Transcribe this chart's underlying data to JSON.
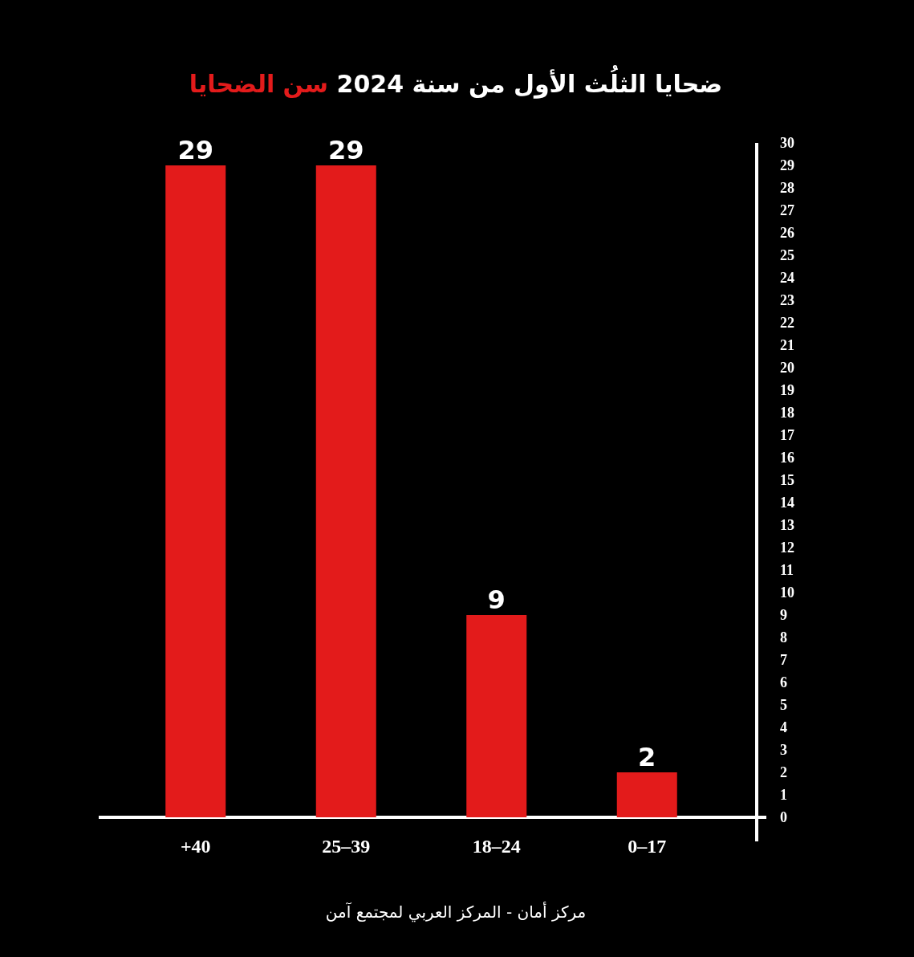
{
  "chart_data": {
    "type": "bar",
    "title": "ضحايا الثلُث الأول من سنة 2024",
    "subtitle": "سن الضحايا",
    "categories": [
      "+40",
      "25–39",
      "18–24",
      "0–17"
    ],
    "values": [
      29,
      29,
      9,
      2
    ],
    "color": "#e31b1b",
    "ylim": [
      0,
      30
    ],
    "yticks": [
      0,
      1,
      2,
      3,
      4,
      5,
      6,
      7,
      8,
      9,
      10,
      11,
      12,
      13,
      14,
      15,
      16,
      17,
      18,
      19,
      20,
      21,
      22,
      23,
      24,
      25,
      26,
      27,
      28,
      29,
      30
    ],
    "data_labels": true,
    "grid": false,
    "annotations": [
      "مركز أمان  - المركز العربي لمجتمع آمن"
    ]
  }
}
